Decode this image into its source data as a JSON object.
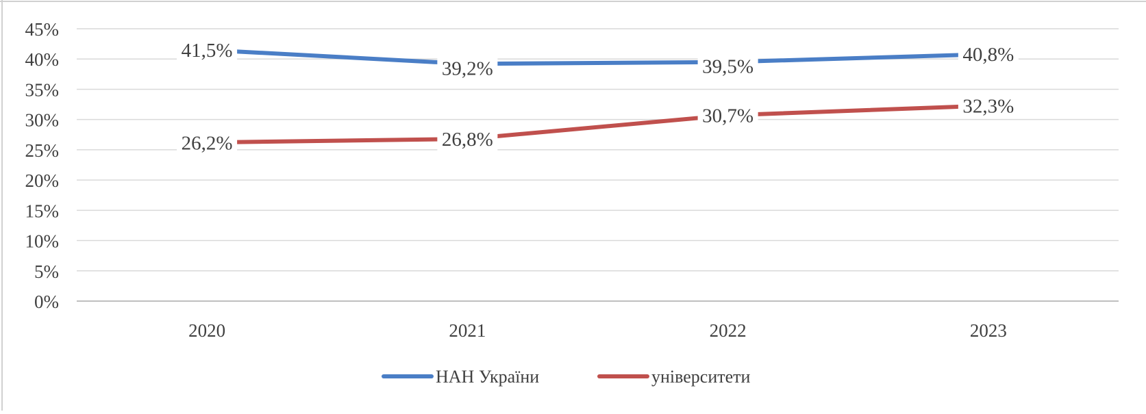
{
  "chart_data": {
    "type": "line",
    "title": "",
    "xlabel": "",
    "ylabel": "",
    "categories": [
      "2020",
      "2021",
      "2022",
      "2023"
    ],
    "series": [
      {
        "name": "НАН України",
        "values": [
          41.5,
          39.2,
          39.5,
          40.8
        ],
        "labels": [
          "41,5%",
          "39,2%",
          "39,5%",
          "40,8%"
        ],
        "color": "#4a7ec6"
      },
      {
        "name": "університети",
        "values": [
          26.2,
          26.8,
          30.7,
          32.3
        ],
        "labels": [
          "26,2%",
          "26,8%",
          "30,7%",
          "32,3%"
        ],
        "color": "#c0504d"
      }
    ],
    "ylim": [
      0,
      45
    ],
    "yticks": [
      0,
      5,
      10,
      15,
      20,
      25,
      30,
      35,
      40,
      45
    ],
    "ytick_labels": [
      "0%",
      "5%",
      "10%",
      "15%",
      "20%",
      "25%",
      "30%",
      "35%",
      "40%",
      "45%"
    ],
    "grid": true,
    "legend": "bottom-center",
    "colors": {
      "grid": "#d9d9d9",
      "axis": "#bfbfbf",
      "text": "#404040"
    }
  }
}
